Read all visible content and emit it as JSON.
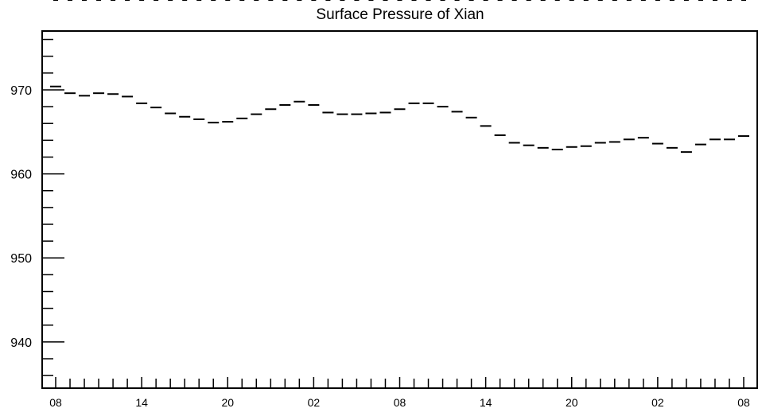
{
  "chart_data": {
    "type": "box",
    "title": "Surface Pressure of Xian",
    "xlabel": "",
    "ylabel": "",
    "ylim": [
      934.5,
      977
    ],
    "y_ticks": [
      940,
      950,
      960,
      970
    ],
    "y_tick_labels": [
      "940",
      "950",
      "960",
      "970"
    ],
    "x_tick_labels": [
      "08",
      "14",
      "20",
      "02",
      "08",
      "14",
      "20",
      "02",
      "08"
    ],
    "x_tick_label_hours": [
      0,
      6,
      12,
      18,
      24,
      30,
      36,
      42,
      48
    ],
    "x_hours": [
      0,
      1,
      2,
      3,
      4,
      5,
      6,
      7,
      8,
      9,
      10,
      11,
      12,
      13,
      14,
      15,
      16,
      17,
      18,
      19,
      20,
      21,
      22,
      23,
      24,
      25,
      26,
      27,
      28,
      29,
      30,
      31,
      32,
      33,
      34,
      35,
      36,
      37,
      38,
      39,
      40,
      41,
      42,
      43,
      44,
      45,
      46,
      47,
      48
    ],
    "series": [
      {
        "median": [
          970.4,
          969.6,
          969.3,
          969.6,
          969.5,
          969.2,
          968.4,
          967.9,
          967.2,
          966.8,
          966.5,
          966.1,
          966.2,
          966.6,
          967.1,
          967.7,
          968.2,
          968.6,
          968.2,
          967.3,
          967.1,
          967.1,
          967.2,
          967.3,
          967.7,
          968.4,
          968.4,
          968.0,
          967.4,
          966.7,
          965.7,
          964.6,
          963.7,
          963.4,
          963.1,
          962.9,
          963.2,
          963.3,
          963.7,
          963.8,
          964.1,
          964.3,
          963.6,
          963.1,
          962.6,
          963.5,
          964.1,
          964.1,
          964.5
        ],
        "q1": [
          970.1,
          969.3,
          969.0,
          969.3,
          969.2,
          968.9,
          968.1,
          967.6,
          966.9,
          966.5,
          966.2,
          965.8,
          965.9,
          966.3,
          966.8,
          967.4,
          967.9,
          968.3,
          967.9,
          967.0,
          966.8,
          966.8,
          966.9,
          967.0,
          967.4,
          968.1,
          968.1,
          967.7,
          967.1,
          966.4,
          965.4,
          964.3,
          963.4,
          963.1,
          962.8,
          962.6,
          962.9,
          963.0,
          963.4,
          963.5,
          963.8,
          964.0,
          963.3,
          962.8,
          962.3,
          963.2,
          963.8,
          963.8,
          964.2
        ],
        "q3": [
          970.7,
          969.9,
          969.6,
          969.9,
          969.8,
          969.5,
          968.7,
          968.2,
          967.5,
          967.1,
          966.8,
          966.4,
          966.5,
          966.9,
          967.4,
          968.0,
          968.5,
          968.9,
          968.5,
          967.6,
          967.4,
          967.4,
          967.5,
          967.6,
          968.0,
          968.7,
          968.7,
          968.3,
          967.7,
          967.0,
          966.0,
          964.9,
          964.0,
          963.7,
          963.4,
          963.2,
          963.5,
          963.6,
          964.0,
          964.1,
          964.4,
          964.6,
          963.9,
          963.4,
          962.9,
          963.8,
          964.4,
          964.4,
          964.8
        ],
        "min": [
          969.0,
          968.1,
          967.8,
          968.1,
          968.0,
          967.6,
          966.8,
          966.3,
          965.6,
          965.2,
          964.9,
          964.6,
          964.7,
          965.0,
          965.6,
          966.2,
          966.7,
          967.1,
          966.7,
          965.7,
          965.5,
          965.5,
          965.6,
          965.7,
          966.2,
          966.8,
          966.8,
          966.4,
          965.9,
          965.2,
          964.2,
          963.0,
          962.1,
          961.9,
          961.6,
          961.4,
          961.6,
          961.8,
          962.1,
          962.2,
          962.5,
          962.8,
          962.0,
          961.5,
          961.1,
          961.9,
          962.5,
          962.5,
          962.9
        ],
        "max": [
          970.9,
          970.1,
          969.8,
          970.1,
          970.0,
          969.7,
          968.9,
          968.4,
          967.7,
          967.3,
          967.0,
          966.6,
          966.7,
          967.1,
          967.6,
          968.2,
          968.7,
          969.1,
          968.7,
          967.8,
          967.6,
          967.6,
          967.7,
          967.8,
          968.2,
          968.9,
          968.9,
          968.5,
          967.9,
          967.2,
          966.2,
          965.1,
          964.2,
          963.9,
          963.6,
          963.4,
          963.7,
          963.8,
          964.2,
          964.3,
          964.6,
          964.8,
          964.1,
          963.6,
          963.1,
          964.0,
          964.6,
          964.6,
          965.0
        ]
      }
    ]
  }
}
